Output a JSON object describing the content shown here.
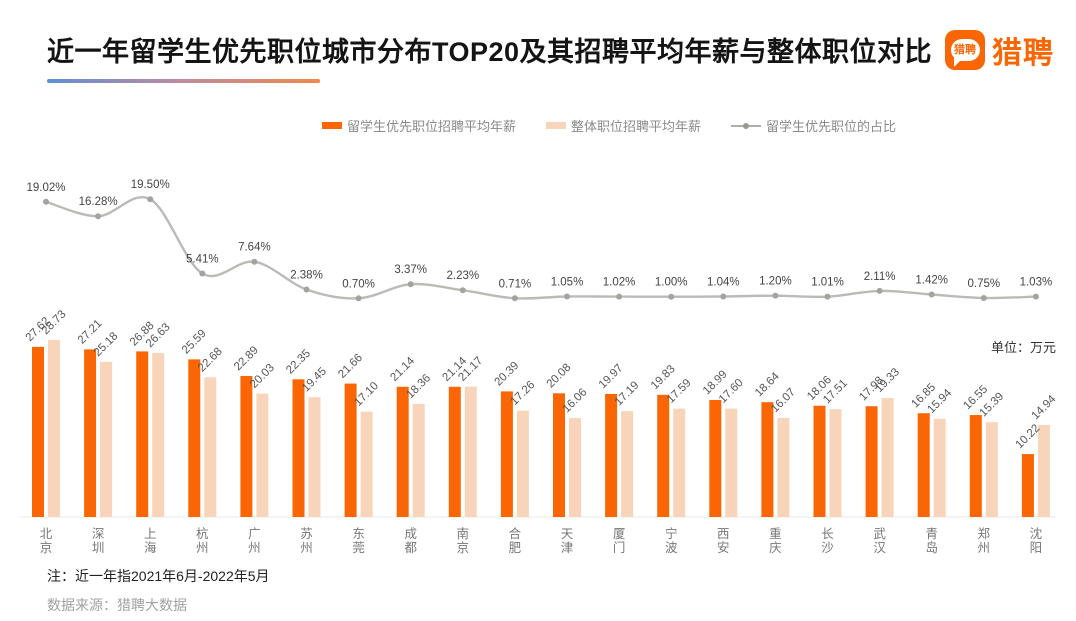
{
  "header": {
    "title": "近一年留学生优先职位城市分布TOP20及其招聘平均年薪与整体职位对比",
    "logo_badge_text": "猎聘",
    "logo_text": "猎聘",
    "brand_color": "#FA6604"
  },
  "legend": [
    {
      "label": "留学生优先职位招聘平均年薪",
      "marker": "bar-swatch",
      "color": "#FA6604"
    },
    {
      "label": "整体职位招聘平均年薪",
      "marker": "bar-swatch",
      "color": "#F8D5BA"
    },
    {
      "label": "留学生优先职位的占比",
      "marker": "line-dot",
      "color": "#B5B2AF"
    }
  ],
  "unit_label": "单位：万元",
  "note": "注：近一年指2021年6月-2022年5月",
  "source": "数据来源：猎聘大数据",
  "chart_data": {
    "type": "bar",
    "subtype": "grouped-bars-with-line-overlay",
    "title": "近一年留学生优先职位城市分布TOP20及其招聘平均年薪与整体职位对比",
    "categories": [
      "北京",
      "深圳",
      "上海",
      "杭州",
      "广州",
      "苏州",
      "东莞",
      "成都",
      "南京",
      "合肥",
      "天津",
      "厦门",
      "宁波",
      "西安",
      "重庆",
      "长沙",
      "武汉",
      "青岛",
      "郑州",
      "沈阳"
    ],
    "series": [
      {
        "name": "留学生优先职位招聘平均年薪",
        "type": "bar",
        "unit": "万元",
        "color": "#FA6604",
        "values": [
          27.62,
          27.21,
          26.88,
          25.59,
          22.89,
          22.35,
          21.66,
          21.14,
          21.14,
          20.39,
          20.08,
          19.97,
          19.83,
          18.99,
          18.64,
          18.06,
          17.98,
          16.85,
          16.55,
          10.22
        ]
      },
      {
        "name": "整体职位招聘平均年薪",
        "type": "bar",
        "unit": "万元",
        "color": "#F8D5BA",
        "values": [
          28.73,
          25.18,
          26.63,
          22.68,
          20.03,
          19.45,
          17.1,
          18.36,
          21.17,
          17.26,
          16.06,
          17.19,
          17.59,
          17.6,
          16.07,
          17.51,
          19.33,
          15.94,
          15.39,
          14.94
        ]
      },
      {
        "name": "留学生优先职位的占比",
        "type": "line",
        "unit": "%",
        "color": "#B5B2AF",
        "values": [
          19.02,
          16.28,
          19.5,
          5.41,
          7.64,
          2.38,
          0.7,
          3.37,
          2.23,
          0.71,
          1.05,
          1.02,
          1.0,
          1.04,
          1.2,
          1.01,
          2.11,
          1.42,
          0.75,
          1.03
        ]
      }
    ],
    "value_labels_shown": true,
    "legend_position": "top",
    "grid": false,
    "ylabel": "",
    "xlabel": ""
  }
}
